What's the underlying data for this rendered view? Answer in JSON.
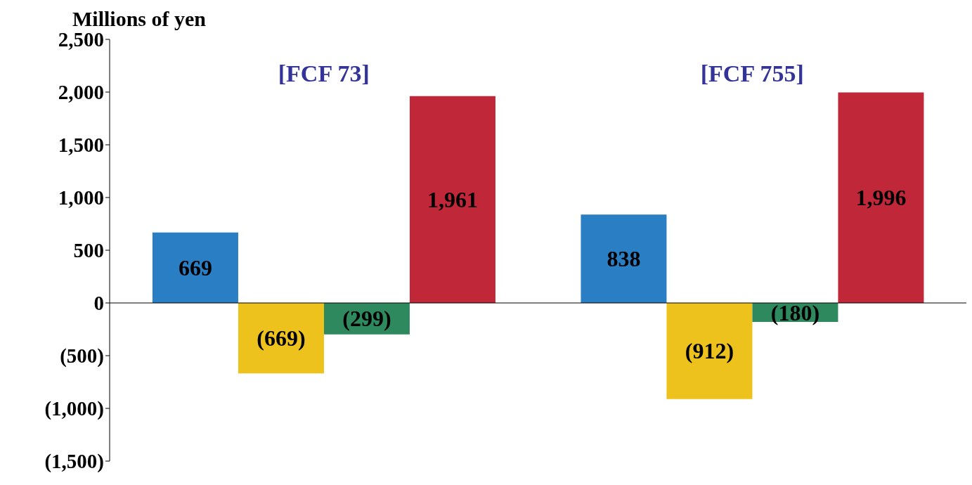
{
  "chart_data": {
    "type": "bar",
    "ylabel": "Millions of yen",
    "categories": [
      null,
      null
    ],
    "series": [
      {
        "color": "#2a7fc4",
        "values": [
          669,
          838
        ],
        "value_labels": [
          "669",
          "838"
        ]
      },
      {
        "color": "#eec21c",
        "values": [
          -669,
          -912
        ],
        "value_labels": [
          "(669)",
          "(912)"
        ]
      },
      {
        "color": "#2e8a5e",
        "values": [
          -299,
          -180
        ],
        "value_labels": [
          "(299)",
          "(180)"
        ]
      },
      {
        "color": "#c0283a",
        "values": [
          1961,
          1996
        ],
        "value_labels": [
          "1,961",
          "1,996"
        ]
      }
    ],
    "annotations": [
      "[FCF 73]",
      "[FCF 755]"
    ],
    "ylim": [
      -1500,
      2500
    ],
    "yticks": [
      {
        "value": -1500,
        "label": "(1,500)"
      },
      {
        "value": -1000,
        "label": "(1,000)"
      },
      {
        "value": -500,
        "label": "(500)"
      },
      0,
      500,
      {
        "value": 1000,
        "label": "1,000"
      },
      {
        "value": 1500,
        "label": "1,500"
      },
      {
        "value": 2000,
        "label": "2,000"
      },
      {
        "value": 2500,
        "label": "2,500"
      }
    ],
    "ref_lines": [
      {
        "axis": "y",
        "value": 0,
        "color": "#000000"
      }
    ],
    "tick_labels": "y",
    "grid": false,
    "legend": false
  }
}
